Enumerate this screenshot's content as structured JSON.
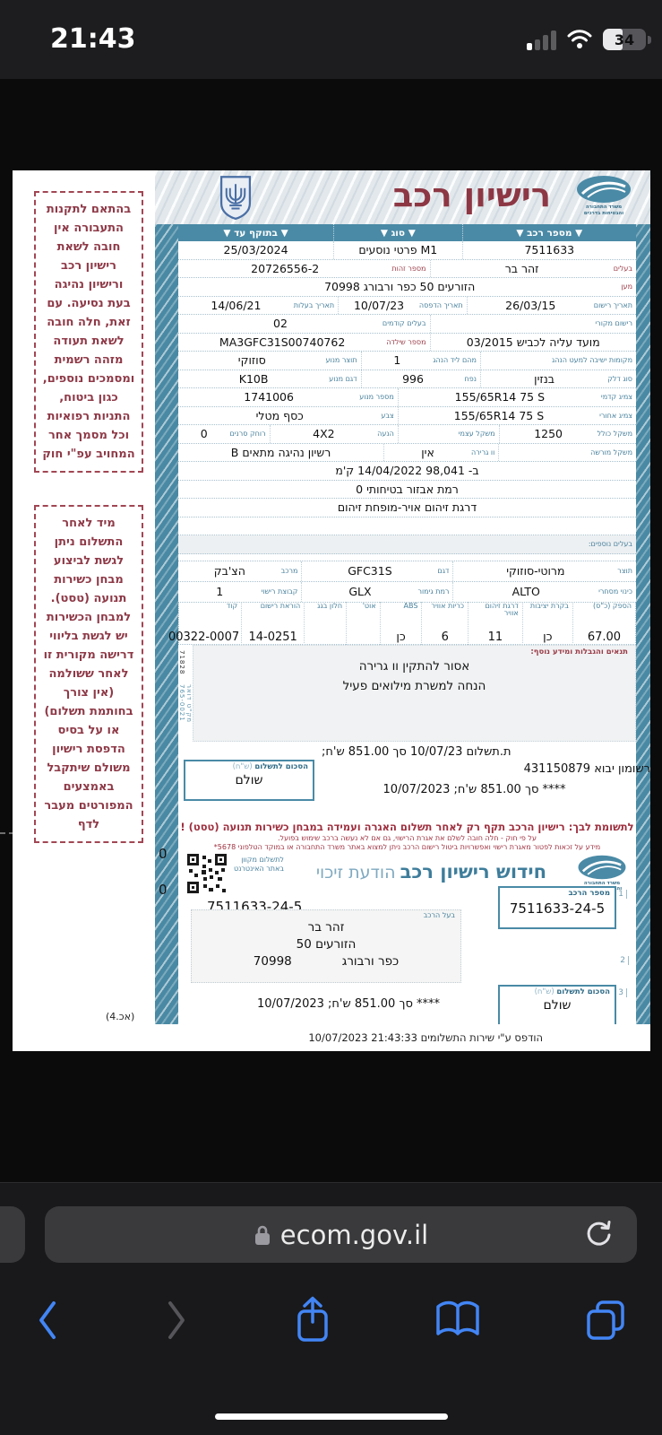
{
  "status_bar": {
    "time": "21:43",
    "battery": "34"
  },
  "browser": {
    "url": "ecom.gov.il"
  },
  "doc": {
    "title": "רישיון רכב",
    "ministry_line1": "משרד התחבורה",
    "ministry_line2": "והבטיחות בדרכים",
    "side_notes": [
      {
        "text": "בהתאם לתקנות התעבורה אין חובה לשאת רישיון רכב ורישיון נהיגה בעת נסיעה. עם זאת, חלה חובה לשאת תעודה מזהה רשמית ומסמכים נוספים, כגון ביטוח, התניות רפואיות וכל מסמך אחר המחויב עפ\"י חוק"
      },
      {
        "text": "מיד לאחר התשלום ניתן לגשת לביצוע מבחן כשירות תנועה (טסט). למבחן הכשירות יש לגשת בליווי דרישה מקורית זו לאחר ששולמה (אין צורך בחותמת תשלום) או על בסיס הדפסת רישיון משולם שיתקבל באמצעים המפורטים מעבר לדף"
      }
    ],
    "vehicle_table": {
      "rows": [
        {
          "h": true,
          "cells": [
            {
              "t": "▼ מספר רכב ▼",
              "f": 38
            },
            {
              "t": "▼ סוג ▼",
              "f": 28
            },
            {
              "t": "▼ בתוקף עד ▼",
              "f": 34
            }
          ]
        },
        {
          "cells": [
            {
              "v": "7511633",
              "f": 38
            },
            {
              "v": "M1 פרטי נוסעים",
              "f": 28
            },
            {
              "v": "25/03/2024",
              "f": 34
            }
          ]
        },
        {
          "cells": [
            {
              "l": "בעלים",
              "r": 1,
              "v": "זהר בר",
              "f": 45
            },
            {
              "l": "מספר זהות",
              "r": 1,
              "v": "20726556-2",
              "f": 55
            }
          ]
        },
        {
          "cells": [
            {
              "l": "מען",
              "r": 1,
              "v": "הזורעים 50  כפר ורבורג 70998",
              "f": 100
            }
          ]
        },
        {
          "cells": [
            {
              "l": "תאריך רישום",
              "v": "26/03/15",
              "f": 37
            },
            {
              "l": "תאריך הדפסה",
              "v": "10/07/23",
              "f": 28
            },
            {
              "l": "תאריך בעלות",
              "v": "14/06/21",
              "f": 35
            }
          ]
        },
        {
          "cells": [
            {
              "l": "רישום מקורי",
              "v": "",
              "f": 45
            },
            {
              "l": "בעלים קודמים",
              "v": "02",
              "f": 55
            }
          ]
        },
        {
          "cells": [
            {
              "v": "מועד עליה לכביש 03/2015",
              "f": 45
            },
            {
              "l": "מספר שילדה",
              "r": 1,
              "v": "MA3GFC31S00740762",
              "f": 55
            }
          ]
        },
        {
          "cells": [
            {
              "l": "מקומות ישיבה למעט הנהג",
              "v": "",
              "f": 34
            },
            {
              "l": "מהם ליד הנהג",
              "v": "1",
              "f": 26
            },
            {
              "l": "תוצר מנוע",
              "v": "סוזוקי",
              "f": 40
            }
          ]
        },
        {
          "cells": [
            {
              "l": "סוג דלק",
              "v": "בנזין",
              "f": 34
            },
            {
              "l": "נפח",
              "v": "996",
              "f": 26
            },
            {
              "l": "דגם מנוע",
              "v": "K10B",
              "f": 40
            }
          ]
        },
        {
          "cells": [
            {
              "l": "צמיג קדמי",
              "v": "155/65R14 75 S",
              "d": "ltr",
              "f": 52
            },
            {
              "l": "מספר מנוע",
              "v": "1741006",
              "f": 48
            }
          ]
        },
        {
          "cells": [
            {
              "l": "צמיג אחורי",
              "v": "155/65R14 75 S",
              "d": "ltr",
              "f": 52
            },
            {
              "l": "צבע",
              "v": "כסף מטלי",
              "f": 48
            }
          ]
        },
        {
          "cells": [
            {
              "l": "משקל כולל",
              "v": "1250",
              "f": 30
            },
            {
              "l": "משקל עצמי",
              "v": "",
              "f": 22
            },
            {
              "l": "הנעה",
              "v": "4X2",
              "f": 28
            },
            {
              "l": "רוחק סרנים",
              "v": "0",
              "f": 20
            }
          ]
        },
        {
          "cells": [
            {
              "l": "משקל מורשה",
              "v": "",
              "f": 30
            },
            {
              "l": "וו גרירה",
              "v": "אין",
              "f": 25
            },
            {
              "v": "רשיון נהיגה מתאים B",
              "f": 45
            }
          ]
        },
        {
          "cells": [
            {
              "v": "ב- 98,041 14/04/2022 ק'מ",
              "f": 100
            }
          ]
        },
        {
          "cells": [
            {
              "v": "רמת אבזור בטיחותי  0",
              "f": 100
            }
          ]
        },
        {
          "cells": [
            {
              "v": "דרגת זיהום אויר-מופחת זיהום",
              "f": 100
            }
          ]
        },
        {
          "cells": [
            {
              "v": "",
              "f": 100
            }
          ]
        },
        {
          "cls": "shade",
          "cells": [
            {
              "l": "בעלים נוספים:",
              "v": "",
              "f": 100
            }
          ]
        }
      ]
    },
    "model_table": {
      "rows": [
        {
          "cells": [
            {
              "l": "תוצר",
              "v": "מרוטי-סוזוקי",
              "f": 40
            },
            {
              "l": "דגם",
              "v": "GFC31S",
              "f": 33
            },
            {
              "l": "מרכב",
              "v": "הצ'בק",
              "f": 27
            }
          ]
        },
        {
          "cells": [
            {
              "l": "כינוי מסחרי",
              "v": "ALTO",
              "f": 40
            },
            {
              "l": "רמת גימור",
              "v": "GLX",
              "f": 33
            },
            {
              "l": "קבוצת רישוי",
              "v": "1",
              "f": 27
            }
          ]
        }
      ]
    },
    "spec_table": {
      "rows": [
        {
          "spec": true,
          "cells": [
            {
              "l": "הספק (כ\"ס)",
              "v": "67.00",
              "f": 14
            },
            {
              "l": "בקרת יציבות",
              "v": "כן",
              "f": 11
            },
            {
              "l": "דרגת זיהום אוויר",
              "v": "11",
              "f": 12
            },
            {
              "l": "כריות אוויר",
              "v": "6",
              "f": 10
            },
            {
              "l": "ABS",
              "v": "כן",
              "f": 9
            },
            {
              "l": "אוט'",
              "v": "",
              "f": 7
            },
            {
              "l": "חלון בגג",
              "v": "",
              "f": 9
            },
            {
              "l": "הוראת רישום",
              "v": "14-0251",
              "f": 14
            },
            {
              "l": "קוד",
              "v": "00322-0007",
              "f": 14
            }
          ]
        }
      ]
    },
    "conditions": {
      "label": "תנאים והגבלות ומידע נוסף:",
      "lines": [
        "אסור להתקין וו גרירה",
        "הנחה למשרת מילואים פעיל"
      ],
      "side_code_1": "71828",
      "side_code_2": "מק\"ט דואר  765-0021"
    },
    "payment": {
      "line1": "ת.תשלום 10/07/23 סך 851.00 ש'ח;",
      "import_line": "רשומון יבוא 431150879",
      "box_label": "הסכום לתשלום",
      "box_unit": "(ש\"ח)",
      "box_value": "שולם",
      "line2": "**** סך 851.00  ש'ח; 10/07/2023"
    },
    "warning": {
      "bold": "לתשומת לבך: רישיון הרכב תקף רק לאחר תשלום האגרה ועמידה במבחן כשירות תנועה (טסט) !",
      "small1": "על פי חוק - חלה חובה לשלם את אגרת הרישוי, גם אם לא נעשה ברכב שימוש בפועל.",
      "small2": "מידע על זכאות לפטור מאגרת רישוי ואפשרויות ביטול רישום הרכב ניתן למצוא באתר משרד התחבורה או במוקד הטלפוני 5678*"
    },
    "renewal": {
      "title_bold": "חידוש רישיון רכב",
      "title_light": "הודעת זיכוי",
      "qr_caption_1": "לתשלום מקוון",
      "qr_caption_2": "באתר האינטרנט",
      "ref": "7511633-24-5",
      "zeros": [
        "0",
        "0"
      ],
      "plate_box": {
        "label": "מספר הרכב",
        "value": "7511633-24-5",
        "marker": "1"
      },
      "owner_box": {
        "label": "בעל הרכב",
        "line1": "זהר בר",
        "line2": "הזורעים 50",
        "city": "כפר ורבורג",
        "zip": "70998",
        "marker": "2"
      },
      "pay_box": {
        "label": "הסכום לתשלום",
        "unit": "(ש\"ח)",
        "value": "שולם",
        "marker": "3"
      },
      "pay_line": "**** סך 851.00  ש'ח; 10/07/2023"
    },
    "footer": {
      "printed": "הודפס ע\"י  שירות התשלומים 21:43:33 10/07/2023",
      "code": "(4.אכ)"
    }
  }
}
